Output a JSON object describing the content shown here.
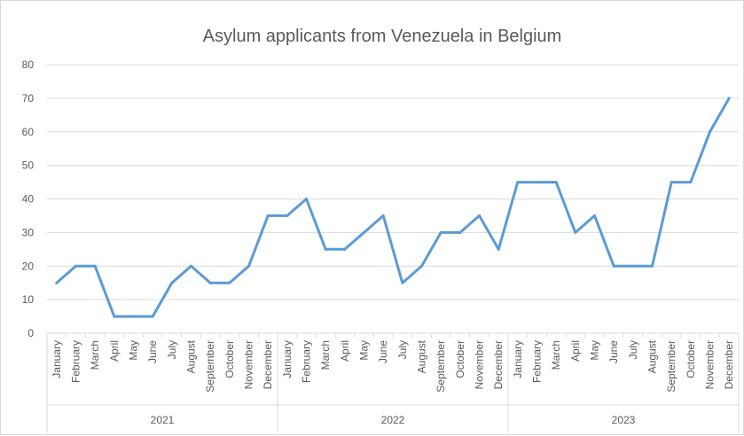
{
  "chart_data": {
    "type": "line",
    "title": "Asylum applicants from Venezuela in  Belgium",
    "xlabel": "",
    "ylabel": "",
    "ylim": [
      0,
      80
    ],
    "y_ticks": [
      0,
      10,
      20,
      30,
      40,
      50,
      60,
      70,
      80
    ],
    "grid": true,
    "legend": "none",
    "line_color": "#5b9bd5",
    "years": [
      "2021",
      "2022",
      "2023"
    ],
    "months": [
      "January",
      "February",
      "March",
      "April",
      "May",
      "June",
      "July",
      "August",
      "September",
      "October",
      "November",
      "December"
    ],
    "series": [
      {
        "values": [
          15,
          20,
          20,
          5,
          5,
          5,
          15,
          20,
          15,
          15,
          20,
          35,
          35,
          40,
          25,
          25,
          30,
          35,
          15,
          20,
          30,
          30,
          35,
          25,
          45,
          45,
          45,
          30,
          35,
          20,
          20,
          20,
          45,
          45,
          60,
          70
        ]
      }
    ]
  }
}
